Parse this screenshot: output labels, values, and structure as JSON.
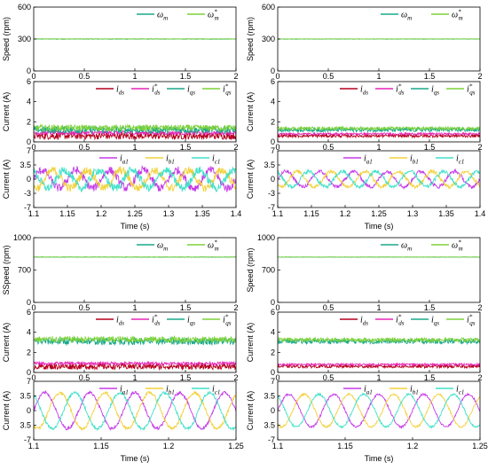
{
  "chart_data": [
    {
      "id": "TL",
      "type": "line",
      "title": "",
      "xlabel": "Time (s)",
      "xlim": [
        1.1,
        1.4
      ],
      "xticks": [
        "1.1",
        "1.15",
        "1.2",
        "1.25",
        "1.3",
        "1.35",
        "1.4"
      ],
      "shared_xticks": [
        "0",
        "0.5",
        "1",
        "1.5",
        "2"
      ],
      "panels": [
        {
          "ylabel": "Speed (rpm)",
          "ylim": [
            0,
            600
          ],
          "yticks": [
            "600",
            "300",
            "0"
          ],
          "legend": [
            {
              "sym": "ω",
              "sub": "m",
              "star": false
            },
            {
              "sym": "ω",
              "sub": "m",
              "star": true
            }
          ],
          "series": [
            {
              "kind": "flat",
              "value": 300,
              "noise": 3,
              "color": "#1aa88a"
            },
            {
              "kind": "flat",
              "value": 301,
              "noise": 2,
              "color": "#7dd23a"
            }
          ]
        },
        {
          "ylabel": "Current (A)",
          "ylim": [
            0,
            6
          ],
          "yticks": [
            "6",
            "4",
            "2",
            "0"
          ],
          "legend": [
            {
              "sym": "i",
              "sub": "ds",
              "star": false
            },
            {
              "sym": "i",
              "sub": "ds",
              "star": true
            },
            {
              "sym": "i",
              "sub": "qs",
              "star": false
            },
            {
              "sym": "i",
              "sub": "qs",
              "star": true
            }
          ],
          "series": [
            {
              "kind": "flat",
              "value": 0.6,
              "noise": 0.35,
              "color": "#b5001e"
            },
            {
              "kind": "flat",
              "value": 0.9,
              "noise": 0.2,
              "color": "#e626b8"
            },
            {
              "kind": "flat",
              "value": 1.2,
              "noise": 0.35,
              "color": "#1aa88a"
            },
            {
              "kind": "flat",
              "value": 1.4,
              "noise": 0.3,
              "color": "#7dd23a"
            }
          ]
        },
        {
          "ylabel": "Current (A)",
          "ylim": [
            -7,
            7
          ],
          "yticks": [
            "7",
            "3.5",
            "0",
            "-3",
            "-7"
          ],
          "legend": [
            {
              "sym": "i",
              "sub": "a1",
              "star": false
            },
            {
              "sym": "i",
              "sub": "b1",
              "star": false
            },
            {
              "sym": "i",
              "sub": "c1",
              "star": false
            }
          ],
          "series": [
            {
              "kind": "sine",
              "amp": 2.2,
              "period": 0.05,
              "phase": 0,
              "noise": 1.0,
              "color": "#c53ae8"
            },
            {
              "kind": "sine",
              "amp": 2.2,
              "period": 0.05,
              "phase": 2.094,
              "noise": 1.0,
              "color": "#f2d13a"
            },
            {
              "kind": "sine",
              "amp": 2.2,
              "period": 0.05,
              "phase": 4.189,
              "noise": 1.0,
              "color": "#40e0c8"
            }
          ]
        }
      ]
    },
    {
      "id": "TR",
      "type": "line",
      "title": "",
      "xlabel": "Time (s)",
      "xlim": [
        1.1,
        1.4
      ],
      "xticks": [
        "1.1",
        "1.15",
        "1.2",
        "1.25",
        "1.3",
        "1.35",
        "1.4"
      ],
      "shared_xticks": [
        "0",
        "0.5",
        "1",
        "1.5",
        "2"
      ],
      "panels": [
        {
          "ylabel": "Speed (rpm)",
          "ylim": [
            0,
            600
          ],
          "yticks": [
            "600",
            "300",
            "0"
          ],
          "legend": [
            {
              "sym": "ω",
              "sub": "m",
              "star": false
            },
            {
              "sym": "ω",
              "sub": "m",
              "star": true
            }
          ],
          "series": [
            {
              "kind": "flat",
              "value": 300,
              "noise": 2,
              "color": "#1aa88a"
            },
            {
              "kind": "flat",
              "value": 301,
              "noise": 1.5,
              "color": "#7dd23a"
            }
          ]
        },
        {
          "ylabel": "Current (A)",
          "ylim": [
            0,
            6
          ],
          "yticks": [
            "6",
            "4",
            "2",
            "0"
          ],
          "legend": [
            {
              "sym": "i",
              "sub": "ds",
              "star": false
            },
            {
              "sym": "i",
              "sub": "ds",
              "star": true
            },
            {
              "sym": "i",
              "sub": "qs",
              "star": false
            },
            {
              "sym": "i",
              "sub": "qs",
              "star": true
            }
          ],
          "series": [
            {
              "kind": "flat",
              "value": 0.6,
              "noise": 0.15,
              "color": "#b5001e"
            },
            {
              "kind": "flat",
              "value": 0.8,
              "noise": 0.1,
              "color": "#e626b8"
            },
            {
              "kind": "flat",
              "value": 1.2,
              "noise": 0.2,
              "color": "#1aa88a"
            },
            {
              "kind": "flat",
              "value": 1.35,
              "noise": 0.15,
              "color": "#7dd23a"
            }
          ]
        },
        {
          "ylabel": "Current (A)",
          "ylim": [
            -7,
            7
          ],
          "yticks": [
            "7",
            "3.5",
            "0",
            "-3",
            "-7"
          ],
          "legend": [
            {
              "sym": "i",
              "sub": "a1",
              "star": false
            },
            {
              "sym": "i",
              "sub": "b1",
              "star": false
            },
            {
              "sym": "i",
              "sub": "c1",
              "star": false
            }
          ],
          "series": [
            {
              "kind": "sine",
              "amp": 1.9,
              "period": 0.05,
              "phase": 0,
              "noise": 0.45,
              "color": "#c53ae8"
            },
            {
              "kind": "sine",
              "amp": 1.9,
              "period": 0.05,
              "phase": 2.094,
              "noise": 0.45,
              "color": "#f2d13a"
            },
            {
              "kind": "sine",
              "amp": 1.9,
              "period": 0.05,
              "phase": 4.189,
              "noise": 0.45,
              "color": "#40e0c8"
            }
          ]
        }
      ]
    },
    {
      "id": "BL",
      "type": "line",
      "title": "",
      "xlabel": "Time (s)",
      "xlim": [
        1.1,
        1.25
      ],
      "xticks": [
        "1.1",
        "1.15",
        "1.2",
        "1.25"
      ],
      "shared_xticks": [
        "0",
        "0.5",
        "1",
        "1.5",
        "2"
      ],
      "panels": [
        {
          "ylabel": "SSpeed (rpm)",
          "ylim": [
            0,
            1000
          ],
          "yticks": [
            "1000",
            "700",
            "0"
          ],
          "legend": [
            {
              "sym": "ω",
              "sub": "m",
              "star": false
            },
            {
              "sym": "ω",
              "sub": "m",
              "star": true
            }
          ],
          "series": [
            {
              "kind": "flat",
              "value": 700,
              "noise": 4,
              "color": "#1aa88a"
            },
            {
              "kind": "flat",
              "value": 701,
              "noise": 3,
              "color": "#7dd23a"
            }
          ]
        },
        {
          "ylabel": "Current (A)",
          "ylim": [
            0,
            6
          ],
          "yticks": [
            "6",
            "4",
            "2",
            "0"
          ],
          "legend": [
            {
              "sym": "i",
              "sub": "ds",
              "star": false
            },
            {
              "sym": "i",
              "sub": "ds",
              "star": true
            },
            {
              "sym": "i",
              "sub": "qs",
              "star": false
            },
            {
              "sym": "i",
              "sub": "qs",
              "star": true
            }
          ],
          "series": [
            {
              "kind": "flat",
              "value": 0.6,
              "noise": 0.3,
              "color": "#b5001e"
            },
            {
              "kind": "flat",
              "value": 0.9,
              "noise": 0.15,
              "color": "#e626b8"
            },
            {
              "kind": "flat",
              "value": 3.1,
              "noise": 0.35,
              "color": "#1aa88a"
            },
            {
              "kind": "flat",
              "value": 3.3,
              "noise": 0.3,
              "color": "#7dd23a"
            }
          ]
        },
        {
          "ylabel": "Current (A)",
          "ylim": [
            -7,
            7
          ],
          "yticks": [
            "7",
            "3.5",
            "0",
            "3.5",
            "-7"
          ],
          "legend": [
            {
              "sym": "i",
              "sub": "a1",
              "star": false
            },
            {
              "sym": "i",
              "sub": "b1",
              "star": false
            },
            {
              "sym": "i",
              "sub": "c1",
              "star": false
            }
          ],
          "series": [
            {
              "kind": "sine",
              "amp": 4.3,
              "period": 0.0333,
              "phase": 0,
              "noise": 0.35,
              "color": "#c53ae8"
            },
            {
              "kind": "sine",
              "amp": 4.3,
              "period": 0.0333,
              "phase": 2.094,
              "noise": 0.35,
              "color": "#f2d13a"
            },
            {
              "kind": "sine",
              "amp": 4.3,
              "period": 0.0333,
              "phase": 4.189,
              "noise": 0.35,
              "color": "#40e0c8"
            }
          ]
        }
      ]
    },
    {
      "id": "BR",
      "type": "line",
      "title": "",
      "xlabel": "Time (s)",
      "xlim": [
        1.1,
        1.25
      ],
      "xticks": [
        "1.1",
        "1.15",
        "1.2",
        "1.25"
      ],
      "shared_xticks": [
        "0",
        "0.5",
        "1",
        "1.5",
        "2"
      ],
      "panels": [
        {
          "ylabel": "Speed (rpm)",
          "ylim": [
            0,
            1000
          ],
          "yticks": [
            "1000",
            "700",
            "0"
          ],
          "legend": [
            {
              "sym": "ω",
              "sub": "m",
              "star": false
            },
            {
              "sym": "ω",
              "sub": "m",
              "star": true
            }
          ],
          "series": [
            {
              "kind": "flat",
              "value": 700,
              "noise": 3,
              "color": "#1aa88a"
            },
            {
              "kind": "flat",
              "value": 701,
              "noise": 2,
              "color": "#7dd23a"
            }
          ]
        },
        {
          "ylabel": "Current (A)",
          "ylim": [
            0,
            6
          ],
          "yticks": [
            "6",
            "4",
            "2",
            "0"
          ],
          "legend": [
            {
              "sym": "i",
              "sub": "ds",
              "star": false
            },
            {
              "sym": "i",
              "sub": "ds",
              "star": true
            },
            {
              "sym": "i",
              "sub": "qs",
              "star": false
            },
            {
              "sym": "i",
              "sub": "qs",
              "star": true
            }
          ],
          "series": [
            {
              "kind": "flat",
              "value": 0.6,
              "noise": 0.15,
              "color": "#b5001e"
            },
            {
              "kind": "flat",
              "value": 0.8,
              "noise": 0.1,
              "color": "#e626b8"
            },
            {
              "kind": "flat",
              "value": 3.1,
              "noise": 0.25,
              "color": "#1aa88a"
            },
            {
              "kind": "flat",
              "value": 3.25,
              "noise": 0.2,
              "color": "#7dd23a"
            }
          ]
        },
        {
          "ylabel": "Current (A)",
          "ylim": [
            -7,
            7
          ],
          "yticks": [
            "7",
            "3.5",
            "0",
            "3.5",
            "-7"
          ],
          "legend": [
            {
              "sym": "i",
              "sub": "a1",
              "star": false
            },
            {
              "sym": "i",
              "sub": "b1",
              "star": false
            },
            {
              "sym": "i",
              "sub": "c1",
              "star": false
            }
          ],
          "series": [
            {
              "kind": "sine",
              "amp": 3.9,
              "period": 0.0333,
              "phase": 0,
              "noise": 0.25,
              "color": "#c53ae8"
            },
            {
              "kind": "sine",
              "amp": 3.9,
              "period": 0.0333,
              "phase": 2.094,
              "noise": 0.25,
              "color": "#f2d13a"
            },
            {
              "kind": "sine",
              "amp": 3.9,
              "period": 0.0333,
              "phase": 4.189,
              "noise": 0.25,
              "color": "#40e0c8"
            }
          ]
        }
      ]
    }
  ]
}
